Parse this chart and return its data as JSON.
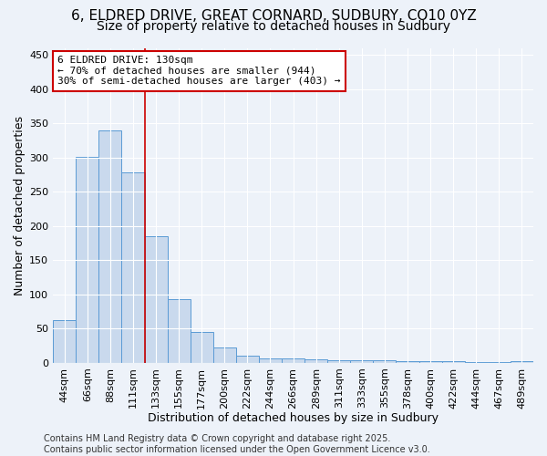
{
  "title_line1": "6, ELDRED DRIVE, GREAT CORNARD, SUDBURY, CO10 0YZ",
  "title_line2": "Size of property relative to detached houses in Sudbury",
  "xlabel": "Distribution of detached houses by size in Sudbury",
  "ylabel": "Number of detached properties",
  "categories": [
    "44sqm",
    "66sqm",
    "88sqm",
    "111sqm",
    "133sqm",
    "155sqm",
    "177sqm",
    "200sqm",
    "222sqm",
    "244sqm",
    "266sqm",
    "289sqm",
    "311sqm",
    "333sqm",
    "355sqm",
    "378sqm",
    "400sqm",
    "422sqm",
    "444sqm",
    "467sqm",
    "489sqm"
  ],
  "values": [
    63,
    301,
    340,
    278,
    185,
    93,
    45,
    22,
    11,
    7,
    6,
    5,
    4,
    4,
    4,
    3,
    3,
    2,
    1,
    1,
    2
  ],
  "bar_color": "#c9d9ed",
  "bar_edge_color": "#5b9bd5",
  "vline_x_index": 3.5,
  "vline_color": "#cc0000",
  "annotation_line1": "6 ELDRED DRIVE: 130sqm",
  "annotation_line2": "← 70% of detached houses are smaller (944)",
  "annotation_line3": "30% of semi-detached houses are larger (403) →",
  "annotation_box_color": "white",
  "annotation_box_edge_color": "#cc0000",
  "ylim": [
    0,
    460
  ],
  "yticks": [
    0,
    50,
    100,
    150,
    200,
    250,
    300,
    350,
    400,
    450
  ],
  "bg_color": "#edf2f9",
  "plot_bg_color": "#edf2f9",
  "footer_text": "Contains HM Land Registry data © Crown copyright and database right 2025.\nContains public sector information licensed under the Open Government Licence v3.0.",
  "title_fontsize": 11,
  "subtitle_fontsize": 10,
  "axis_label_fontsize": 9,
  "tick_fontsize": 8,
  "annotation_fontsize": 8,
  "footer_fontsize": 7
}
